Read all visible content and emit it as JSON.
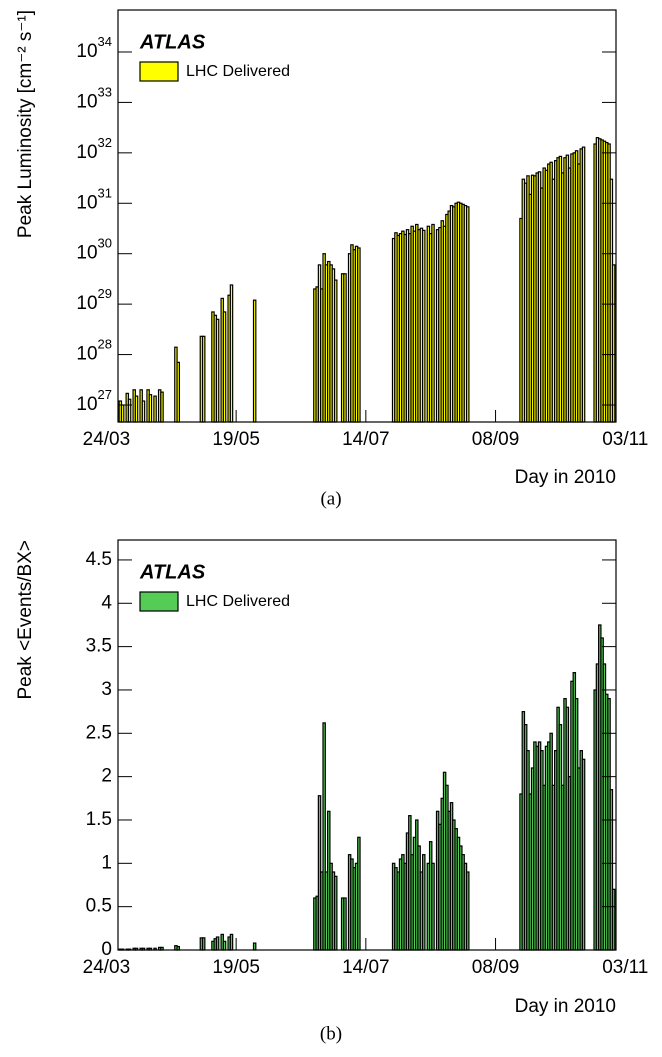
{
  "chart_data": [
    {
      "type": "bar",
      "panel": "(a)",
      "annotation": "ATLAS",
      "xlabel": "Day in 2010",
      "ylabel": "Peak Luminosity [cm⁻² s⁻¹]",
      "log_y": true,
      "xlim": [
        88,
        303
      ],
      "ylim": [
        4.6e+26,
        6.8e+34
      ],
      "xticks": [
        {
          "value": 83,
          "label": "24/03"
        },
        {
          "value": 139,
          "label": "19/05"
        },
        {
          "value": 195,
          "label": "14/07"
        },
        {
          "value": 251,
          "label": "08/09"
        },
        {
          "value": 307,
          "label": "03/11"
        }
      ],
      "yticks": [
        {
          "value": 1e+27,
          "base": "10",
          "exp": "27"
        },
        {
          "value": 1e+28,
          "base": "10",
          "exp": "28"
        },
        {
          "value": 1e+29,
          "base": "10",
          "exp": "29"
        },
        {
          "value": 1e+30,
          "base": "10",
          "exp": "30"
        },
        {
          "value": 1e+31,
          "base": "10",
          "exp": "31"
        },
        {
          "value": 1e+32,
          "base": "10",
          "exp": "32"
        },
        {
          "value": 1e+33,
          "base": "10",
          "exp": "33"
        },
        {
          "value": 1e+34,
          "base": "10",
          "exp": "34"
        }
      ],
      "x": [
        89,
        90,
        92,
        93,
        95,
        96,
        98,
        99,
        101,
        102,
        104,
        106,
        107,
        113,
        114,
        124,
        125,
        129,
        130,
        131,
        133,
        134,
        136,
        137,
        147,
        173,
        174,
        175,
        176,
        177,
        178,
        179,
        180,
        181,
        182,
        185,
        186,
        188,
        189,
        190,
        191,
        192,
        207,
        208,
        209,
        210,
        211,
        212,
        213,
        214,
        215,
        216,
        217,
        218,
        219,
        220,
        222,
        223,
        224,
        226,
        227,
        228,
        229,
        230,
        231,
        232,
        233,
        234,
        235,
        236,
        237,
        238,
        239,
        262,
        263,
        264,
        265,
        266,
        267,
        268,
        269,
        270,
        271,
        272,
        273,
        274,
        275,
        276,
        277,
        278,
        279,
        280,
        281,
        282,
        283,
        284,
        285,
        286,
        287,
        288,
        289,
        294,
        295,
        296,
        297,
        298,
        299,
        300,
        301,
        302
      ],
      "series": [
        {
          "name": "LHC Delivered",
          "color": "#ffff00",
          "values": [
            1.2e+27,
            1e+27,
            1.7e+27,
            1.3e+27,
            2e+27,
            1.5e+27,
            2e+27,
            1.2e+27,
            2e+27,
            1.6e+27,
            1.5e+27,
            2e+27,
            1.8e+27,
            1.4e+28,
            7e+27,
            2.3e+28,
            2.3e+28,
            7e+28,
            6e+28,
            5e+28,
            1.3e+29,
            7e+28,
            1.5e+29,
            2.4e+29,
            1.2e+29,
            2e+29,
            2.2e+29,
            6e+29,
            2e+29,
            1e+30,
            6e+29,
            7e+29,
            6e+29,
            5e+29,
            3e+29,
            4e+29,
            4e+29,
            1e+30,
            1.5e+30,
            1.2e+30,
            1.4e+30,
            1.3e+30,
            2e+30,
            2.6e+30,
            2.3e+30,
            2.5e+30,
            2.8e+30,
            2.4e+30,
            3e+30,
            2.5e+30,
            3.5e+30,
            2.8e+30,
            3.8e+30,
            3e+30,
            3.2e+30,
            2.9e+30,
            3.5e+30,
            2.5e+30,
            3.8e+30,
            3e+30,
            3.3e+30,
            4.5e+30,
            3.5e+30,
            6e+30,
            7e+30,
            9e+30,
            8.5e+30,
            1e+31,
            1.05e+31,
            1e+31,
            9.5e+30,
            9e+30,
            8.5e+30,
            5e+30,
            3e+31,
            2.5e+31,
            3.5e+31,
            1.5e+31,
            3.6e+31,
            3.5e+31,
            4e+31,
            4.2e+31,
            2e+31,
            5e+31,
            4.5e+31,
            6e+31,
            6.5e+31,
            3e+31,
            7e+31,
            8e+31,
            8.5e+31,
            4e+31,
            8e+31,
            9e+31,
            5e+31,
            9.5e+31,
            1e+32,
            1.1e+32,
            6e+31,
            1.2e+32,
            1.3e+32,
            1.5e+32,
            2e+32,
            1.9e+32,
            1.8e+32,
            1.7e+32,
            1.6e+32,
            1.5e+32,
            3e+31,
            6e+29
          ]
        }
      ]
    },
    {
      "type": "bar",
      "panel": "(b)",
      "annotation": "ATLAS",
      "xlabel": "Day in 2010",
      "ylabel": "Peak <Events/BX>",
      "log_y": false,
      "xlim": [
        88,
        303
      ],
      "ylim": [
        0,
        4.73
      ],
      "xticks": [
        {
          "value": 83,
          "label": "24/03"
        },
        {
          "value": 139,
          "label": "19/05"
        },
        {
          "value": 195,
          "label": "14/07"
        },
        {
          "value": 251,
          "label": "08/09"
        },
        {
          "value": 307,
          "label": "03/11"
        }
      ],
      "yticks": [
        0,
        0.5,
        1,
        1.5,
        2,
        2.5,
        3,
        3.5,
        4,
        4.5
      ],
      "x": [
        89,
        90,
        92,
        93,
        95,
        96,
        98,
        99,
        101,
        102,
        104,
        106,
        107,
        113,
        114,
        124,
        125,
        129,
        130,
        131,
        133,
        134,
        136,
        137,
        147,
        173,
        174,
        175,
        176,
        177,
        178,
        179,
        180,
        181,
        182,
        185,
        186,
        188,
        189,
        190,
        191,
        192,
        207,
        208,
        209,
        210,
        211,
        212,
        213,
        214,
        215,
        216,
        217,
        218,
        219,
        220,
        222,
        223,
        224,
        226,
        227,
        228,
        229,
        230,
        231,
        232,
        233,
        234,
        235,
        236,
        237,
        238,
        239,
        262,
        263,
        264,
        265,
        266,
        267,
        268,
        269,
        270,
        271,
        272,
        273,
        274,
        275,
        276,
        277,
        278,
        279,
        280,
        281,
        282,
        283,
        284,
        285,
        286,
        287,
        288,
        289,
        294,
        295,
        296,
        297,
        298,
        299,
        300,
        301,
        302
      ],
      "series": [
        {
          "name": "LHC Delivered",
          "color": "#55cc55",
          "values": [
            0.01,
            0.01,
            0.01,
            0.01,
            0.02,
            0.02,
            0.02,
            0.02,
            0.02,
            0.02,
            0.02,
            0.03,
            0.03,
            0.05,
            0.04,
            0.14,
            0.14,
            0.1,
            0.13,
            0.15,
            0.18,
            0.1,
            0.15,
            0.18,
            0.08,
            0.6,
            0.62,
            1.78,
            0.9,
            2.62,
            0.9,
            1.6,
            1.0,
            0.9,
            0.85,
            0.6,
            0.6,
            1.1,
            1.05,
            0.95,
            1.0,
            1.3,
            1.0,
            0.95,
            0.9,
            1.05,
            1.1,
            1.0,
            1.35,
            1.55,
            1.1,
            1.3,
            1.5,
            1.2,
            0.9,
            1.1,
            1.0,
            1.25,
            1.0,
            1.6,
            1.45,
            1.75,
            2.05,
            1.9,
            1.6,
            1.7,
            1.5,
            1.4,
            1.3,
            1.2,
            1.1,
            1.0,
            0.9,
            1.8,
            2.75,
            2.6,
            2.3,
            1.8,
            2.1,
            2.4,
            2.35,
            2.4,
            2.3,
            1.9,
            2.35,
            2.4,
            2.5,
            1.9,
            2.3,
            2.8,
            2.6,
            1.9,
            2.9,
            2.8,
            2.0,
            3.1,
            3.2,
            2.9,
            2.1,
            2.3,
            2.2,
            3.0,
            3.3,
            3.75,
            3.6,
            3.3,
            2.95,
            2.9,
            1.85,
            0.7
          ]
        }
      ]
    }
  ]
}
